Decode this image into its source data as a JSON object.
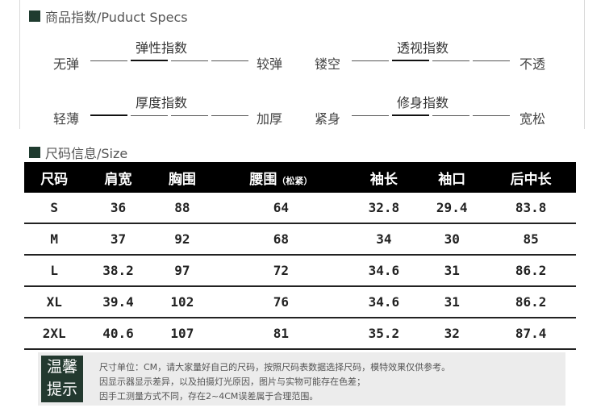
{
  "specs": {
    "title": "商品指数/Puduct Specs",
    "scales": [
      {
        "name": "弹性指数",
        "left": "无弹",
        "right": "较弹",
        "active": 1
      },
      {
        "name": "透视指数",
        "left": "镂空",
        "right": "不透",
        "active": 1
      },
      {
        "name": "厚度指数",
        "left": "轻薄",
        "right": "加厚",
        "active": 0
      },
      {
        "name": "修身指数",
        "left": "紧身",
        "right": "宽松",
        "active": 1
      }
    ]
  },
  "size": {
    "title": "尺码信息/Size",
    "headers": [
      "尺码",
      "肩宽",
      "胸围",
      "腰围",
      "袖长",
      "袖口",
      "后中长"
    ],
    "waist_note": "（松紧）",
    "rows": [
      [
        "S",
        "36",
        "88",
        "64",
        "32.8",
        "29.4",
        "83.8"
      ],
      [
        "M",
        "37",
        "92",
        "68",
        "34",
        "30",
        "85"
      ],
      [
        "L",
        "38.2",
        "97",
        "72",
        "34.6",
        "31",
        "86.2"
      ],
      [
        "XL",
        "39.4",
        "102",
        "76",
        "34.6",
        "31",
        "86.2"
      ],
      [
        "2XL",
        "40.6",
        "107",
        "81",
        "35.2",
        "32",
        "87.4"
      ]
    ]
  },
  "tips": {
    "badge_line1": "温馨",
    "badge_line2": "提示",
    "lines": [
      "尺寸单位：CM，请大家量好自己的尺码，按照尺码表数据选择尺码，模特效果仅供参考。",
      "因显示器显示差异，以及拍摄灯光原因，图片与实物可能存在色差；",
      "因手工测量方式不同，存在2~4CM误差属于合理范围。"
    ]
  }
}
